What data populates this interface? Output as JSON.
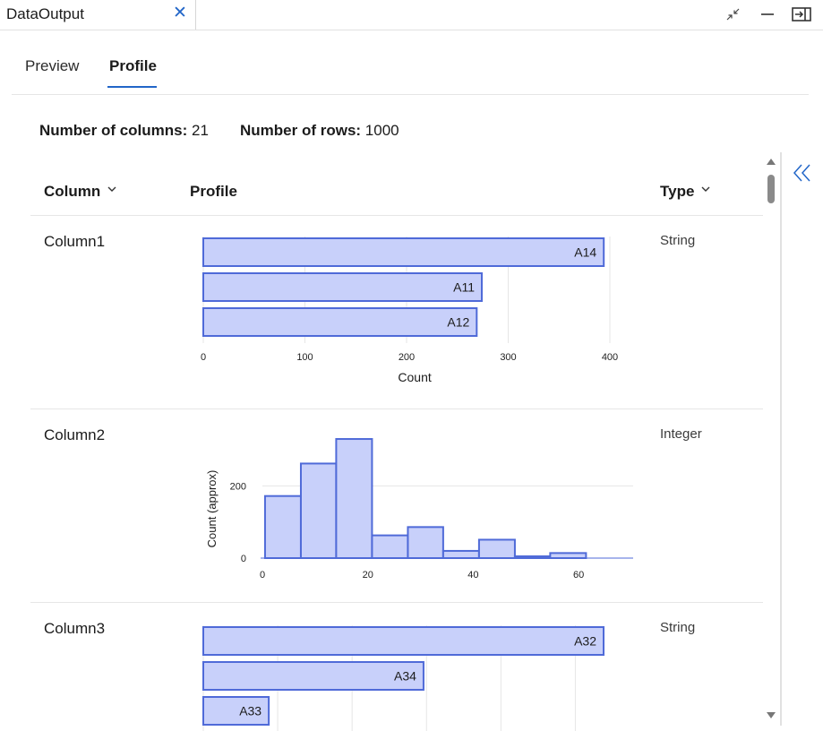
{
  "window": {
    "tab_title": "DataOutput",
    "close_glyph": "✕"
  },
  "tabs": {
    "preview": "Preview",
    "profile": "Profile",
    "active": "Profile"
  },
  "summary": {
    "columns_label": "Number of columns:",
    "columns_value": "21",
    "rows_label": "Number of rows:",
    "rows_value": "1000"
  },
  "headers": {
    "column": "Column",
    "profile": "Profile",
    "type": "Type"
  },
  "rows": [
    {
      "name": "Column1",
      "type": "String"
    },
    {
      "name": "Column2",
      "type": "Integer"
    },
    {
      "name": "Column3",
      "type": "String"
    }
  ],
  "chart_data": [
    {
      "type": "bar",
      "orientation": "horizontal",
      "categories": [
        "A14",
        "A11",
        "A12"
      ],
      "values": [
        394,
        274,
        269
      ],
      "xlabel": "Count",
      "xticks": [
        0,
        100,
        200,
        300,
        400
      ],
      "xlim": [
        0,
        400
      ]
    },
    {
      "type": "bar",
      "subtype": "histogram",
      "bins": [
        {
          "start": 0.5,
          "end": 7.3,
          "count": 172
        },
        {
          "start": 7.3,
          "end": 14.0,
          "count": 262
        },
        {
          "start": 14.0,
          "end": 20.8,
          "count": 330
        },
        {
          "start": 20.8,
          "end": 27.6,
          "count": 63
        },
        {
          "start": 27.6,
          "end": 34.3,
          "count": 86
        },
        {
          "start": 34.3,
          "end": 41.1,
          "count": 20
        },
        {
          "start": 41.1,
          "end": 47.9,
          "count": 51
        },
        {
          "start": 47.9,
          "end": 54.6,
          "count": 5
        },
        {
          "start": 54.6,
          "end": 61.4,
          "count": 14
        }
      ],
      "ylabel": "Count (approx)",
      "xticks": [
        0,
        20,
        40,
        60
      ],
      "yticks": [
        0,
        200
      ],
      "xlim": [
        0,
        70
      ],
      "ylim": [
        0,
        340
      ]
    },
    {
      "type": "bar",
      "orientation": "horizontal",
      "categories": [
        "A32",
        "A34",
        "A33"
      ],
      "values": [
        269,
        148,
        44
      ],
      "xticks": [
        0,
        50,
        100,
        150,
        200,
        250
      ],
      "xlim": [
        0,
        269
      ]
    }
  ]
}
